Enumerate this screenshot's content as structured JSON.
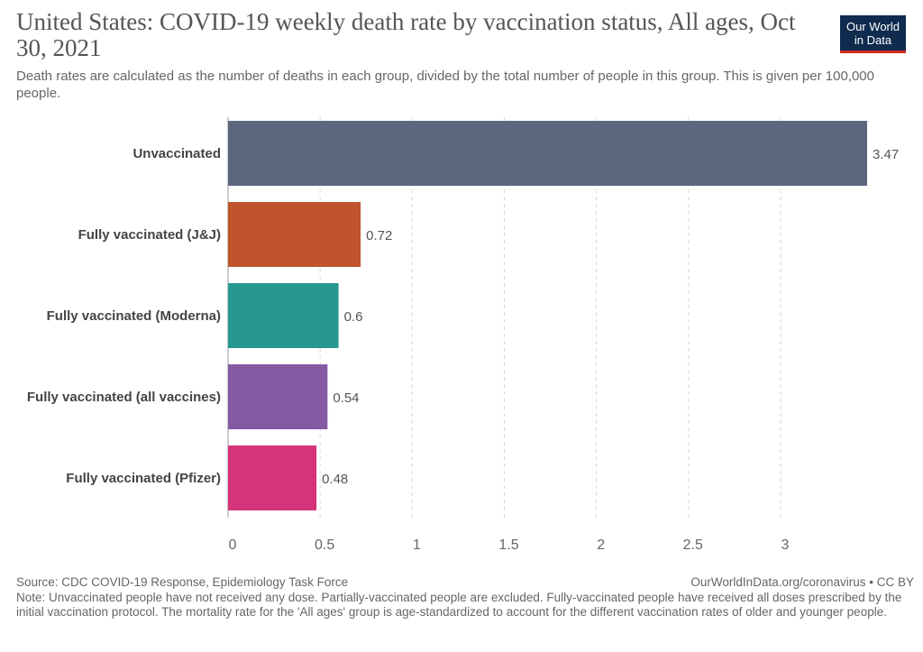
{
  "chart_data": {
    "type": "bar",
    "orientation": "horizontal",
    "title": "United States: COVID-19 weekly death rate by vaccination status, All ages, Oct 30, 2021",
    "subtitle": "Death rates are calculated as the number of deaths in each group, divided by the total number of people in this group. This is given per 100,000 people.",
    "categories": [
      "Unvaccinated",
      "Fully vaccinated (J&J)",
      "Fully vaccinated (Moderna)",
      "Fully vaccinated (all vaccines)",
      "Fully vaccinated (Pfizer)"
    ],
    "values": [
      3.47,
      0.72,
      0.6,
      0.54,
      0.48
    ],
    "value_labels": [
      "3.47",
      "0.72",
      "0.6",
      "0.54",
      "0.48"
    ],
    "colors": [
      "#5b677d",
      "#c0542c",
      "#269890",
      "#845aa3",
      "#d5337a"
    ],
    "xlim": [
      0,
      3.47
    ],
    "x_ticks": [
      0,
      0.5,
      1,
      1.5,
      2,
      2.5,
      3
    ],
    "x_tick_labels": [
      "0",
      "0.5",
      "1",
      "1.5",
      "2",
      "2.5",
      "3"
    ],
    "grid": true,
    "xlabel": "",
    "ylabel": ""
  },
  "logo": {
    "line1": "Our World",
    "line2": "in Data",
    "bg_color": "#0f2b4d",
    "accent_color": "#d42b21"
  },
  "footer": {
    "source": "Source: CDC COVID-19 Response, Epidemiology Task Force",
    "license": "OurWorldInData.org/coronavirus • CC BY",
    "note": "Note: Unvaccinated people have not received any dose. Partially-vaccinated people are excluded. Fully-vaccinated people have received all doses prescribed by the initial vaccination protocol. The mortality rate for the 'All ages' group is age-standardized to account for the different vaccination rates of older and younger people."
  }
}
